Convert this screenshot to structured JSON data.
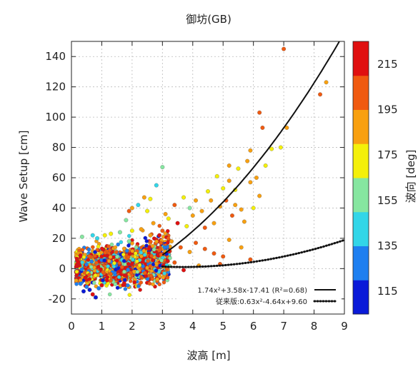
{
  "chart_data": {
    "type": "scatter",
    "title": "御坊(GB)",
    "xlabel": "波高 [m]",
    "ylabel": "Wave Setup [cm]",
    "xlim": [
      0,
      9
    ],
    "ylim": [
      -30,
      150
    ],
    "xticks": [
      0,
      1,
      2,
      3,
      4,
      5,
      6,
      7,
      8,
      9
    ],
    "yticks": [
      -20,
      0,
      20,
      40,
      60,
      80,
      100,
      120,
      140
    ],
    "grid": true,
    "colorbar": {
      "label": "波向 [deg]",
      "min": 105,
      "max": 225,
      "ticks": [
        115,
        135,
        155,
        175,
        195,
        215
      ],
      "colors": [
        "#0a1ad8",
        "#1e7ff0",
        "#32d6e8",
        "#86e6a0",
        "#f4f00a",
        "#f8a010",
        "#f05a10",
        "#e01010"
      ]
    },
    "legend": {
      "position": "bottom-right",
      "entries": [
        {
          "label": "1.74x²+3.58x-17.41 (R²=0.68)",
          "style": "solid"
        },
        {
          "label": "従来版:0.63x²-4.64x+9.60",
          "style": "dotted"
        }
      ]
    },
    "fits": [
      {
        "a": 1.74,
        "b": 3.58,
        "c": -17.41,
        "x_from": 3.0,
        "x_to": 9.0,
        "style": "solid"
      },
      {
        "a": 0.63,
        "b": -4.64,
        "c": 9.6,
        "x_from": 3.0,
        "x_to": 9.0,
        "style": "dotted"
      }
    ],
    "series": [
      {
        "values": [
          [
            7.0,
            145,
            200
          ],
          [
            8.4,
            123,
            183
          ],
          [
            8.2,
            115,
            199
          ],
          [
            7.1,
            93,
            188
          ],
          [
            6.3,
            93,
            195
          ],
          [
            6.2,
            103,
            196
          ],
          [
            5.9,
            78,
            188
          ],
          [
            5.8,
            71,
            185
          ],
          [
            5.5,
            66,
            178
          ],
          [
            5.2,
            68,
            182
          ],
          [
            6.6,
            79,
            176
          ],
          [
            6.9,
            80,
            170
          ],
          [
            6.4,
            68,
            178
          ],
          [
            6.1,
            60,
            183
          ],
          [
            5.9,
            57,
            190
          ],
          [
            6.2,
            48,
            194
          ],
          [
            5.4,
            52,
            173
          ],
          [
            5.0,
            53,
            170
          ],
          [
            4.8,
            61,
            175
          ],
          [
            5.2,
            58,
            188
          ],
          [
            5.1,
            45,
            198
          ],
          [
            5.4,
            42,
            182
          ],
          [
            5.6,
            39,
            186
          ],
          [
            6.0,
            40,
            179
          ],
          [
            5.7,
            31,
            192
          ],
          [
            5.3,
            35,
            200
          ],
          [
            4.9,
            41,
            191
          ],
          [
            4.6,
            45,
            188
          ],
          [
            4.5,
            51,
            169
          ],
          [
            4.3,
            38,
            192
          ],
          [
            4.1,
            45,
            186
          ],
          [
            4.7,
            30,
            187
          ],
          [
            4.4,
            27,
            199
          ],
          [
            4.0,
            35,
            180
          ],
          [
            3.8,
            28,
            178
          ],
          [
            3.9,
            40,
            160
          ],
          [
            3.7,
            47,
            178
          ],
          [
            3.5,
            30,
            210
          ],
          [
            3.4,
            42,
            195
          ],
          [
            3.2,
            33,
            176
          ],
          [
            3.0,
            25,
            199
          ],
          [
            3.1,
            36,
            183
          ],
          [
            2.6,
            46,
            173
          ],
          [
            2.4,
            47,
            193
          ],
          [
            2.7,
            30,
            190
          ],
          [
            3.0,
            67,
            160
          ],
          [
            2.8,
            55,
            148
          ],
          [
            2.2,
            42,
            145
          ],
          [
            2.5,
            38,
            168
          ],
          [
            2.0,
            40,
            185
          ],
          [
            1.8,
            32,
            150
          ],
          [
            1.9,
            38,
            200
          ],
          [
            2.3,
            26,
            188
          ],
          [
            2.0,
            25,
            175
          ],
          [
            2.6,
            22,
            182
          ],
          [
            2.9,
            22,
            210
          ],
          [
            3.3,
            18,
            192
          ],
          [
            3.6,
            14,
            200
          ],
          [
            3.9,
            11,
            188
          ],
          [
            4.1,
            17,
            205
          ],
          [
            4.4,
            13,
            195
          ],
          [
            4.7,
            10,
            202
          ],
          [
            5.0,
            8,
            200
          ],
          [
            5.2,
            19,
            185
          ],
          [
            5.6,
            14,
            190
          ],
          [
            5.9,
            6,
            198
          ],
          [
            4.9,
            3,
            200
          ],
          [
            4.2,
            2,
            193
          ],
          [
            3.7,
            -1,
            210
          ],
          [
            3.4,
            4,
            198
          ],
          [
            0.7,
            -17,
            212
          ],
          [
            0.8,
            -19,
            115
          ],
          [
            0.35,
            21,
            152
          ],
          [
            0.7,
            22,
            140
          ],
          [
            0.85,
            20,
            138
          ],
          [
            1.1,
            22,
            165
          ],
          [
            1.3,
            23,
            170
          ],
          [
            1.6,
            24,
            162
          ],
          [
            1.9,
            18,
            158
          ],
          [
            0.4,
            -15,
            112
          ],
          [
            0.6,
            -14,
            118
          ],
          [
            0.9,
            -13,
            120
          ],
          [
            0.3,
            -10,
            125
          ],
          [
            0.5,
            -12,
            128
          ],
          [
            1.0,
            -11,
            215
          ]
        ]
      }
    ]
  }
}
